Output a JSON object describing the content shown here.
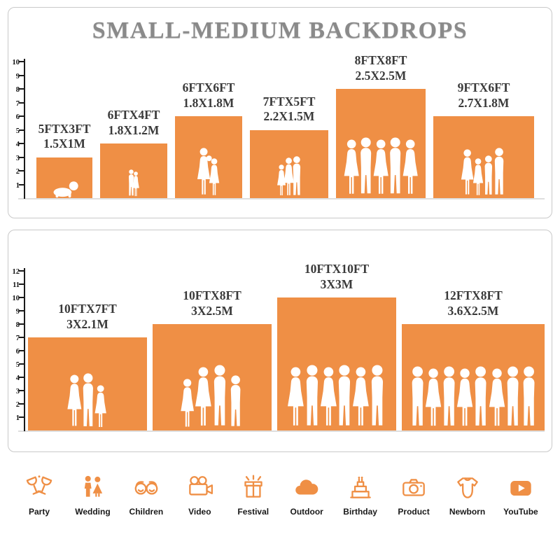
{
  "title": "SMALL-MEDIUM BACKDROPS",
  "accent_color": "#EF8F45",
  "title_color": "#8a8a8a",
  "label_color": "#3a3a3a",
  "panels": [
    {
      "axis_max": 10,
      "backdrops": [
        {
          "size_ft": "5FTX3FT",
          "size_m": "1.5X1M",
          "w_ft": 5,
          "h_ft": 3,
          "figures": [
            "baby"
          ]
        },
        {
          "size_ft": "6FTX4FT",
          "size_m": "1.8X1.2M",
          "w_ft": 6,
          "h_ft": 4,
          "figures": [
            "boy",
            "girl"
          ]
        },
        {
          "size_ft": "6FTX6FT",
          "size_m": "1.8X1.8M",
          "w_ft": 6,
          "h_ft": 6,
          "figures": [
            "woman-baby",
            "girl"
          ]
        },
        {
          "size_ft": "7FTX5FT",
          "size_m": "2.2X1.5M",
          "w_ft": 7,
          "h_ft": 5,
          "figures": [
            "girl",
            "woman",
            "man"
          ]
        },
        {
          "size_ft": "8FTX8FT",
          "size_m": "2.5X2.5M",
          "w_ft": 8,
          "h_ft": 8,
          "figures": [
            "woman",
            "man",
            "woman",
            "man",
            "woman"
          ]
        },
        {
          "size_ft": "9FTX6FT",
          "size_m": "2.7X1.8M",
          "w_ft": 9,
          "h_ft": 6,
          "figures": [
            "woman",
            "girl",
            "boy",
            "man"
          ]
        }
      ]
    },
    {
      "axis_max": 12,
      "backdrops": [
        {
          "size_ft": "10FTX7FT",
          "size_m": "3X2.1M",
          "w_ft": 10,
          "h_ft": 7,
          "figures": [
            "woman",
            "man",
            "girl"
          ]
        },
        {
          "size_ft": "10FTX8FT",
          "size_m": "3X2.5M",
          "w_ft": 10,
          "h_ft": 8,
          "figures": [
            "girl",
            "woman",
            "man",
            "boy"
          ]
        },
        {
          "size_ft": "10FTX10FT",
          "size_m": "3X3M",
          "w_ft": 10,
          "h_ft": 10,
          "figures": [
            "woman",
            "man",
            "woman",
            "man",
            "woman",
            "man"
          ]
        },
        {
          "size_ft": "12FTX8FT",
          "size_m": "3.6X2.5M",
          "w_ft": 12,
          "h_ft": 8,
          "figures": [
            "man",
            "woman",
            "man",
            "woman",
            "man",
            "woman",
            "man",
            "man"
          ]
        }
      ]
    }
  ],
  "categories": [
    {
      "label": "Party",
      "icon": "party-icon"
    },
    {
      "label": "Wedding",
      "icon": "wedding-icon"
    },
    {
      "label": "Children",
      "icon": "children-icon"
    },
    {
      "label": "Video",
      "icon": "video-icon"
    },
    {
      "label": "Festival",
      "icon": "festival-icon"
    },
    {
      "label": "Outdoor",
      "icon": "outdoor-icon"
    },
    {
      "label": "Birthday",
      "icon": "birthday-icon"
    },
    {
      "label": "Product",
      "icon": "product-icon"
    },
    {
      "label": "Newborn",
      "icon": "newborn-icon"
    },
    {
      "label": "YouTube",
      "icon": "youtube-icon"
    }
  ]
}
